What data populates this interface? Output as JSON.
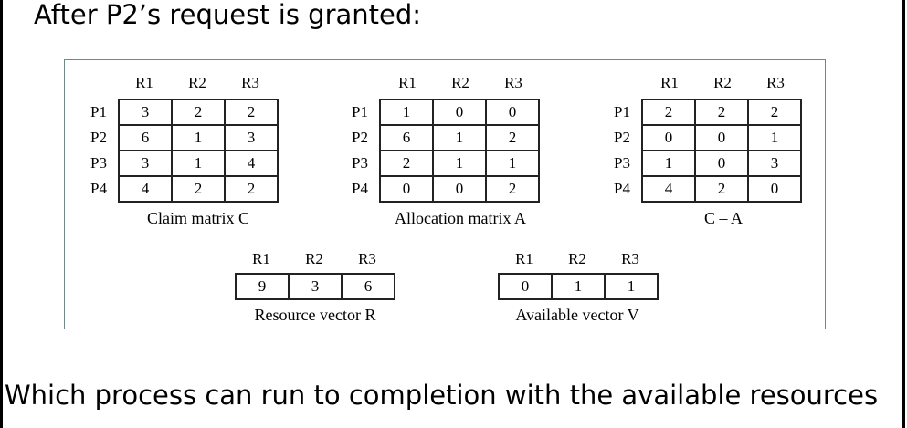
{
  "title": "After P2’s request is granted:",
  "question": "Which process can run to completion with the available resources",
  "figure": {
    "matrices": [
      {
        "caption": "Claim matrix C",
        "columns": [
          "R1",
          "R2",
          "R3"
        ],
        "rows": [
          "P1",
          "P2",
          "P3",
          "P4"
        ],
        "cells": [
          [
            "3",
            "2",
            "2"
          ],
          [
            "6",
            "1",
            "3"
          ],
          [
            "3",
            "1",
            "4"
          ],
          [
            "4",
            "2",
            "2"
          ]
        ]
      },
      {
        "caption": "Allocation matrix A",
        "columns": [
          "R1",
          "R2",
          "R3"
        ],
        "rows": [
          "P1",
          "P2",
          "P3",
          "P4"
        ],
        "cells": [
          [
            "1",
            "0",
            "0"
          ],
          [
            "6",
            "1",
            "2"
          ],
          [
            "2",
            "1",
            "1"
          ],
          [
            "0",
            "0",
            "2"
          ]
        ]
      },
      {
        "caption": "C – A",
        "columns": [
          "R1",
          "R2",
          "R3"
        ],
        "rows": [
          "P1",
          "P2",
          "P3",
          "P4"
        ],
        "cells": [
          [
            "2",
            "2",
            "2"
          ],
          [
            "0",
            "0",
            "1"
          ],
          [
            "1",
            "0",
            "3"
          ],
          [
            "4",
            "2",
            "0"
          ]
        ]
      }
    ],
    "vectors": [
      {
        "caption": "Resource vector R",
        "columns": [
          "R1",
          "R2",
          "R3"
        ],
        "cells": [
          "9",
          "3",
          "6"
        ]
      },
      {
        "caption": "Available vector V",
        "columns": [
          "R1",
          "R2",
          "R3"
        ],
        "cells": [
          "0",
          "1",
          "1"
        ]
      }
    ]
  }
}
